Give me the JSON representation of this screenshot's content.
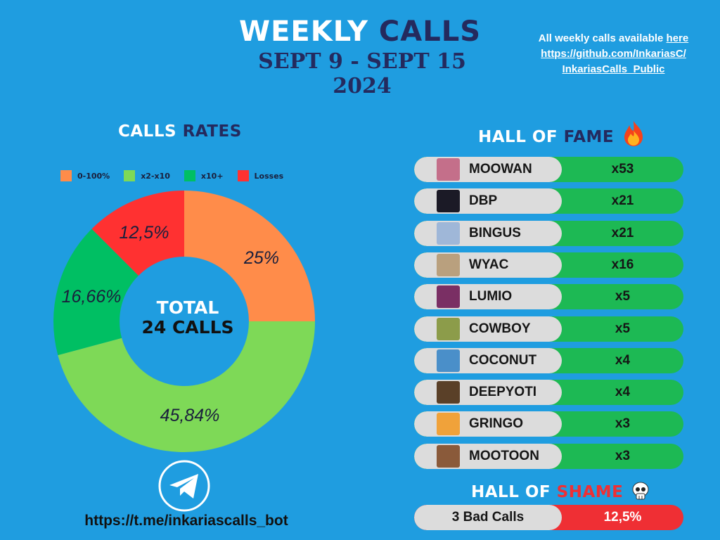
{
  "header": {
    "title_white": "WEEKLY",
    "title_navy": "CALLS",
    "dates": "SEPT 9 - SEPT 15",
    "year": "2024"
  },
  "info": {
    "line1_prefix": "All weekly calls available ",
    "line1_link": "here",
    "url_line1": "https://github.com/InkariasC/",
    "url_line2": "InkariasCalls_Public"
  },
  "calls_rates": {
    "title_white": "CALLS",
    "title_navy": "RATES"
  },
  "chart_data": {
    "type": "pie",
    "variant": "donut",
    "categories": [
      "0-100%",
      "x2-x10",
      "x10+",
      "Losses"
    ],
    "values": [
      25,
      45.84,
      16.66,
      12.5
    ],
    "labels": [
      "25%",
      "45,84%",
      "16,66%",
      "12,5%"
    ],
    "colors": [
      "#ff8c4a",
      "#7ed957",
      "#00bf63",
      "#ff3131"
    ],
    "legend_position": "top",
    "center_text": [
      "TOTAL",
      "24 CALLS"
    ]
  },
  "hall_of_fame": {
    "title_white": "HALL OF",
    "title_navy": "FAME",
    "entries": [
      {
        "name": "MOOWAN",
        "multiplier": "x53",
        "thumb_color": "#c46f8a"
      },
      {
        "name": "DBP",
        "multiplier": "x21",
        "thumb_color": "#1b1a26"
      },
      {
        "name": "BINGUS",
        "multiplier": "x21",
        "thumb_color": "#9fb7d8"
      },
      {
        "name": "WYAC",
        "multiplier": "x16",
        "thumb_color": "#b9a07e"
      },
      {
        "name": "LUMIO",
        "multiplier": "x5",
        "thumb_color": "#7a2f64"
      },
      {
        "name": "COWBOY",
        "multiplier": "x5",
        "thumb_color": "#8c9c4a"
      },
      {
        "name": "COCONUT",
        "multiplier": "x4",
        "thumb_color": "#4a8fc9"
      },
      {
        "name": "DEEPYOTI",
        "multiplier": "x4",
        "thumb_color": "#5a4028"
      },
      {
        "name": "GRINGO",
        "multiplier": "x3",
        "thumb_color": "#f0a23a"
      },
      {
        "name": "MOOTOON",
        "multiplier": "x3",
        "thumb_color": "#8a5a3a"
      }
    ]
  },
  "hall_of_shame": {
    "title_white": "HALL OF",
    "title_red": "SHAME",
    "bad_calls": "3 Bad Calls",
    "rate": "12,5%"
  },
  "footer": {
    "bot_link": "https://t.me/inkariascalls_bot"
  }
}
